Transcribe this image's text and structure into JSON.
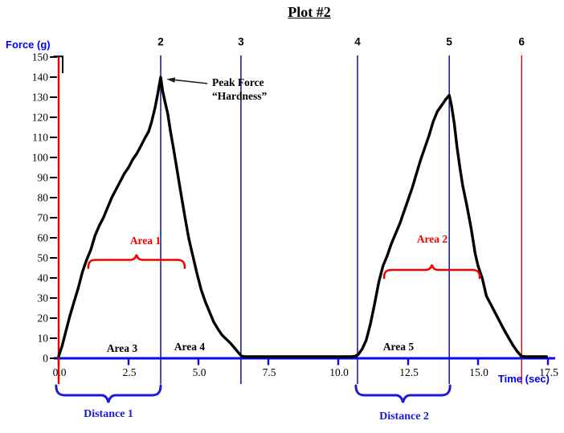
{
  "chart_data": {
    "type": "line",
    "title": "Plot #2",
    "x_axis": {
      "label": "Time (sec)",
      "min": 0,
      "max": 17.5,
      "ticks": [
        "0.0",
        "2.5",
        "5.0",
        "7.5",
        "10.0",
        "12.5",
        "15.0",
        "17.5"
      ],
      "color": "#0a0af0"
    },
    "y_axis": {
      "label": "Force (g)",
      "min": 0,
      "max": 150,
      "tick_step": 10,
      "ticks": [
        "0",
        "10",
        "20",
        "30",
        "40",
        "50",
        "60",
        "70",
        "80",
        "90",
        "100",
        "110",
        "120",
        "130",
        "140",
        "150"
      ],
      "color": "#e80000"
    },
    "series": [
      {
        "name": "force-time curve",
        "color": "#000000",
        "points": [
          [
            0,
            1
          ],
          [
            0.12,
            6
          ],
          [
            0.25,
            13
          ],
          [
            0.4,
            21
          ],
          [
            0.55,
            28
          ],
          [
            0.7,
            35
          ],
          [
            0.85,
            43
          ],
          [
            1.0,
            49
          ],
          [
            1.15,
            54
          ],
          [
            1.3,
            61
          ],
          [
            1.45,
            66
          ],
          [
            1.6,
            70
          ],
          [
            1.75,
            75
          ],
          [
            1.9,
            80
          ],
          [
            2.05,
            84
          ],
          [
            2.2,
            88
          ],
          [
            2.35,
            92
          ],
          [
            2.5,
            95
          ],
          [
            2.65,
            99
          ],
          [
            2.8,
            102
          ],
          [
            2.95,
            106
          ],
          [
            3.1,
            110
          ],
          [
            3.22,
            113
          ],
          [
            3.33,
            118
          ],
          [
            3.45,
            125
          ],
          [
            3.55,
            132
          ],
          [
            3.65,
            140
          ],
          [
            3.72,
            133
          ],
          [
            3.8,
            128
          ],
          [
            3.9,
            122
          ],
          [
            4.0,
            113
          ],
          [
            4.1,
            105
          ],
          [
            4.22,
            95
          ],
          [
            4.35,
            84
          ],
          [
            4.51,
            71
          ],
          [
            4.65,
            60
          ],
          [
            4.8,
            51
          ],
          [
            4.95,
            42
          ],
          [
            5.1,
            34
          ],
          [
            5.25,
            28
          ],
          [
            5.4,
            23
          ],
          [
            5.55,
            18
          ],
          [
            5.7,
            14.5
          ],
          [
            5.85,
            11.5
          ],
          [
            6.0,
            9.5
          ],
          [
            6.15,
            7.5
          ],
          [
            6.3,
            5
          ],
          [
            6.45,
            2.5
          ],
          [
            6.55,
            1
          ],
          [
            6.7,
            0.8
          ],
          [
            7.5,
            0.8
          ],
          [
            8.5,
            0.8
          ],
          [
            9.5,
            0.8
          ],
          [
            10.45,
            0.8
          ],
          [
            10.6,
            1
          ],
          [
            10.72,
            2
          ],
          [
            10.85,
            4.5
          ],
          [
            11.0,
            9
          ],
          [
            11.15,
            17
          ],
          [
            11.3,
            27
          ],
          [
            11.45,
            38
          ],
          [
            11.6,
            46
          ],
          [
            11.75,
            51
          ],
          [
            11.9,
            57
          ],
          [
            12.05,
            62
          ],
          [
            12.2,
            67
          ],
          [
            12.35,
            73
          ],
          [
            12.5,
            79
          ],
          [
            12.65,
            85
          ],
          [
            12.8,
            92
          ],
          [
            12.95,
            99
          ],
          [
            13.1,
            105
          ],
          [
            13.25,
            111
          ],
          [
            13.4,
            118
          ],
          [
            13.55,
            123
          ],
          [
            13.7,
            126
          ],
          [
            13.85,
            129
          ],
          [
            13.97,
            131
          ],
          [
            14.05,
            126
          ],
          [
            14.15,
            117
          ],
          [
            14.25,
            105
          ],
          [
            14.35,
            95
          ],
          [
            14.45,
            86
          ],
          [
            14.6,
            76
          ],
          [
            14.75,
            65
          ],
          [
            14.9,
            52
          ],
          [
            15.0,
            46
          ],
          [
            15.15,
            40
          ],
          [
            15.3,
            31
          ],
          [
            15.45,
            27
          ],
          [
            15.6,
            23
          ],
          [
            15.75,
            19
          ],
          [
            15.9,
            15
          ],
          [
            16.1,
            10
          ],
          [
            16.25,
            6.5
          ],
          [
            16.4,
            3.5
          ],
          [
            16.55,
            1
          ],
          [
            16.7,
            0.8
          ],
          [
            17.0,
            0.8
          ],
          [
            17.45,
            0.8
          ]
        ]
      }
    ],
    "marker_lines": [
      {
        "label": "2",
        "t": 3.65,
        "color": "#00008b"
      },
      {
        "label": "3",
        "t": 6.52,
        "color": "#00008b"
      },
      {
        "label": "4",
        "t": 10.69,
        "color": "#00008b"
      },
      {
        "label": "5",
        "t": 13.97,
        "color": "#00008b"
      },
      {
        "label": "6",
        "t": 16.56,
        "color": "#e80000"
      }
    ],
    "annotations": {
      "peak": {
        "text_line1": "Peak Force",
        "text_line2": "“Hardness”",
        "value_g": 140,
        "tip_t": 3.86,
        "tip_f": 139,
        "tail_t": 5.32,
        "tail_f": 136.8
      },
      "area_braces": [
        {
          "label": "Area 1",
          "t_start": 1.06,
          "t_end": 4.51,
          "f_base": 45,
          "color": "#f40000"
        },
        {
          "label": "Area 2",
          "t_start": 11.64,
          "t_end": 15.06,
          "f_base": 40,
          "color": "#f40000"
        }
      ],
      "area_labels": [
        {
          "label": "Area 3"
        },
        {
          "label": "Area 4"
        },
        {
          "label": "Area 5"
        }
      ],
      "distance_braces": [
        {
          "label": "Distance 1",
          "t_start": -0.09,
          "t_end": 3.65,
          "color": "#1a1ad8"
        },
        {
          "label": "Distance 2",
          "t_start": 10.63,
          "t_end": 14.0,
          "color": "#1a1ad8"
        }
      ]
    },
    "layout_hints": {
      "grid": false,
      "legend": "none",
      "peak2_value_g": 131
    }
  }
}
